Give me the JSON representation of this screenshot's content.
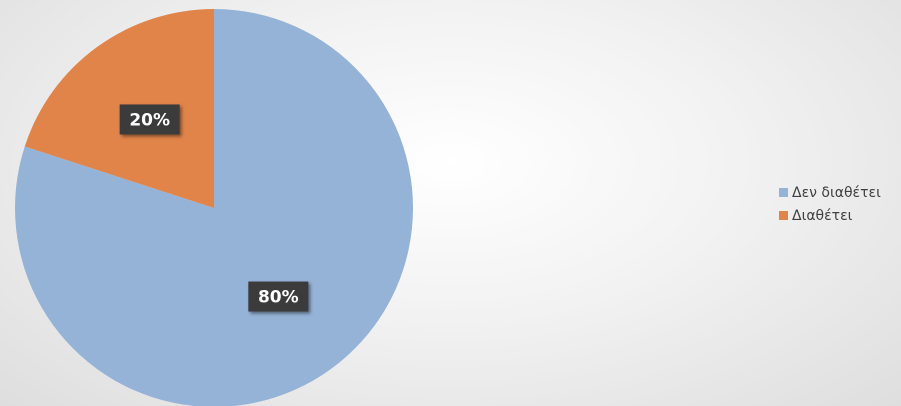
{
  "chart_data": {
    "type": "pie",
    "title": "",
    "categories": [
      "Δεν διαθέτει",
      "Διαθέτει"
    ],
    "values": [
      80,
      20
    ],
    "labels": [
      "80%",
      "20%"
    ],
    "colors": [
      "#95b3d7",
      "#e0844a"
    ],
    "legend": "right",
    "start_angle_deg": 0,
    "direction": "clockwise"
  }
}
